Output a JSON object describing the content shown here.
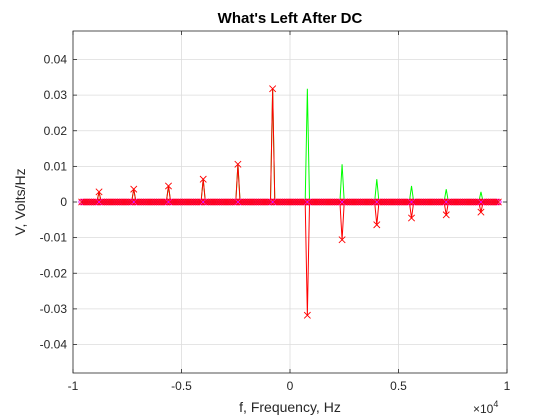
{
  "chart_data": {
    "type": "line",
    "title": "What's Left After DC",
    "xlabel": "f, Frequency, Hz",
    "ylabel": "V, Volts/Hz",
    "x_exponent_label": "×10",
    "x_exponent_power": "4",
    "xlim": [
      -10000,
      10000
    ],
    "ylim": [
      -0.048,
      0.048
    ],
    "grid": true,
    "x_ticks": [
      -10000,
      -5000,
      0,
      5000,
      10000
    ],
    "x_tick_labels": [
      "-1",
      "-0.5",
      "0",
      "0.5",
      "1"
    ],
    "y_ticks": [
      -0.04,
      -0.03,
      -0.02,
      -0.01,
      0,
      0.01,
      0.02,
      0.03,
      0.04
    ],
    "y_tick_labels": [
      "-0.04",
      "-0.03",
      "-0.02",
      "-0.01",
      "0",
      "0.01",
      "0.02",
      "0.03",
      "0.04"
    ],
    "x_start": -9600,
    "x_step": 100,
    "n_points": 193,
    "bins": [
      {
        "x": -8800,
        "real": 0,
        "imag": 0.00284
      },
      {
        "x": -7200,
        "real": 0,
        "imag": 0.0036
      },
      {
        "x": -5600,
        "real": 0,
        "imag": 0.0045
      },
      {
        "x": -4000,
        "real": 0,
        "imag": 0.0064
      },
      {
        "x": -2400,
        "real": 0,
        "imag": 0.0106
      },
      {
        "x": -800,
        "real": 0,
        "imag": 0.0318
      },
      {
        "x": 800,
        "real": 0,
        "imag": -0.0318
      },
      {
        "x": 2400,
        "real": 0,
        "imag": -0.0106
      },
      {
        "x": 4000,
        "real": 0,
        "imag": -0.0064
      },
      {
        "x": 5600,
        "real": 0,
        "imag": -0.0045
      },
      {
        "x": 7200,
        "real": 0,
        "imag": -0.0036
      },
      {
        "x": 8800,
        "real": 0,
        "imag": -0.00284
      }
    ],
    "series": [
      {
        "key": "magnitude",
        "color": "#00ff00",
        "marker": "none"
      },
      {
        "key": "imaginary",
        "color": "#ff0000",
        "marker": "x"
      },
      {
        "key": "real",
        "color": "#0000ff",
        "marker": "o",
        "marker_color": "#ff00ff"
      }
    ]
  }
}
